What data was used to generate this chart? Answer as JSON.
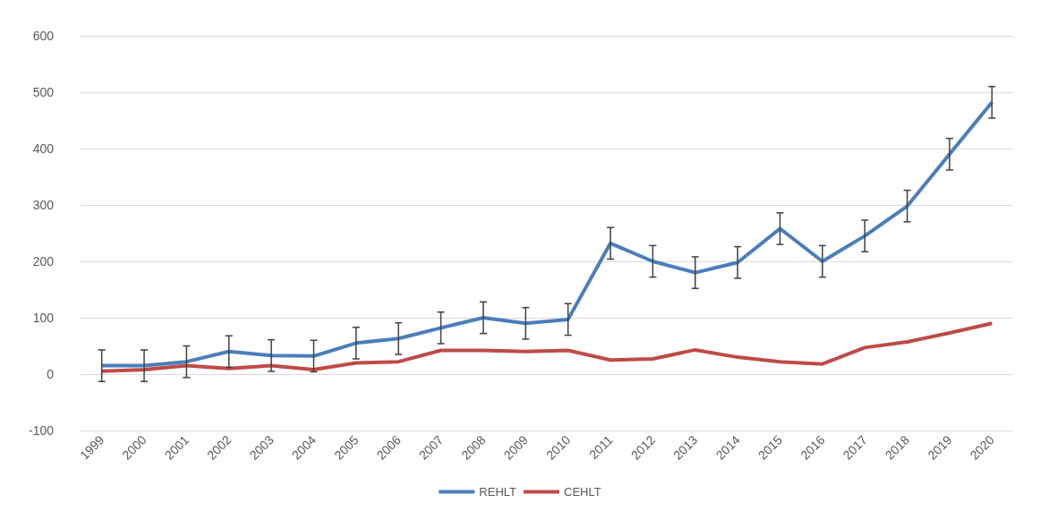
{
  "chart_data": {
    "type": "line",
    "categories": [
      "1999",
      "2000",
      "2001",
      "2002",
      "2003",
      "2004",
      "2005",
      "2006",
      "2007",
      "2008",
      "2009",
      "2010",
      "2011",
      "2012",
      "2013",
      "2014",
      "2015",
      "2016",
      "2017",
      "2018",
      "2019",
      "2020"
    ],
    "series": [
      {
        "name": "REHLT",
        "color": "#4a7ebb",
        "values": [
          15,
          15,
          22,
          40,
          33,
          32,
          55,
          63,
          82,
          100,
          90,
          97,
          232,
          200,
          180,
          198,
          258,
          200,
          245,
          298,
          390,
          482
        ],
        "errors": [
          28,
          28,
          28,
          28,
          28,
          28,
          28,
          28,
          28,
          28,
          28,
          28,
          28,
          28,
          28,
          28,
          28,
          28,
          28,
          28,
          28,
          28
        ]
      },
      {
        "name": "CEHLT",
        "color": "#be4b48",
        "values": [
          5,
          8,
          15,
          10,
          15,
          8,
          20,
          22,
          42,
          42,
          40,
          42,
          25,
          27,
          43,
          30,
          22,
          18,
          47,
          57,
          73,
          90
        ]
      }
    ],
    "ylim": [
      -100,
      600
    ],
    "yticks": [
      -100,
      0,
      100,
      200,
      300,
      400,
      500,
      600
    ],
    "grid": "y",
    "legend": "bottom",
    "marker": "none",
    "line_style": "solid"
  }
}
